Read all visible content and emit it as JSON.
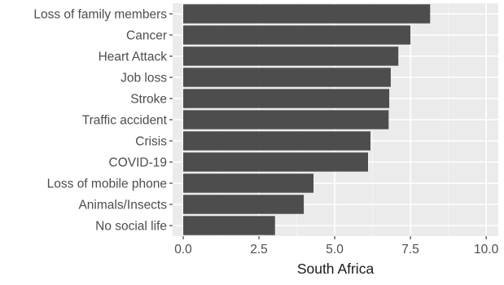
{
  "chart_data": {
    "type": "bar",
    "orientation": "horizontal",
    "categories": [
      "Loss of family members",
      "Cancer",
      "Heart Attack",
      "Job loss",
      "Stroke",
      "Traffic accident",
      "Crisis",
      "COVID-19",
      "Loss of mobile phone",
      "Animals/Insects",
      "No social life"
    ],
    "values": [
      8.15,
      7.5,
      7.1,
      6.85,
      6.8,
      6.78,
      6.18,
      6.1,
      4.3,
      3.98,
      3.03
    ],
    "xlabel": "South Africa",
    "ylabel": "",
    "xlim": [
      -0.35,
      10.4
    ],
    "x_ticks": [
      0.0,
      2.5,
      5.0,
      7.5,
      10.0
    ],
    "x_tick_labels": [
      "0.0",
      "2.5",
      "5.0",
      "7.5",
      "10.0"
    ],
    "grid": true,
    "colors": {
      "bar": "#4d4d4d",
      "panel_background": "#ebebeb",
      "grid_major": "#ffffff",
      "grid_minor": "#f5f5f5"
    }
  }
}
